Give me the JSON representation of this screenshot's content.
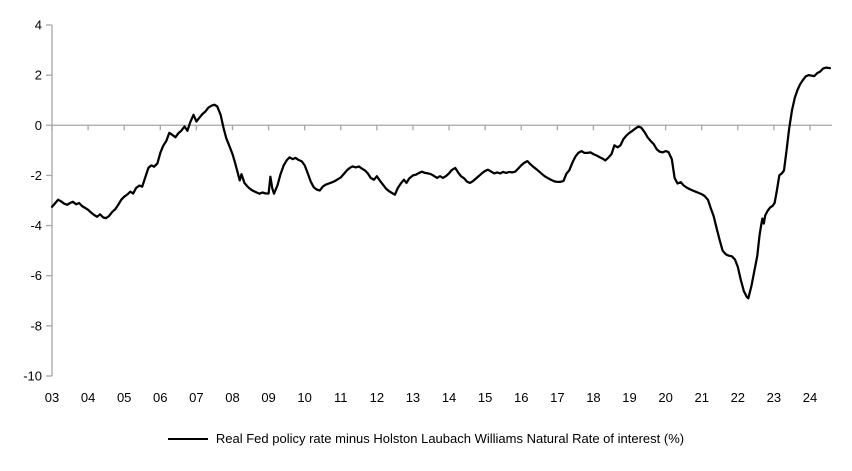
{
  "legend": {
    "series_label": "Real Fed policy rate minus Holston Laubach Williams Natural Rate of interest (%)"
  },
  "chart_data": {
    "type": "line",
    "title": "",
    "xlabel": "",
    "ylabel": "",
    "xlim": [
      2003.0,
      2024.6
    ],
    "ylim": [
      -10,
      4
    ],
    "grid": "zero-line-only",
    "legend_position": "bottom-center",
    "axis_color": "#A6A6A6",
    "line_color": "#000000",
    "y_ticks": [
      4,
      2,
      0,
      -2,
      -4,
      -6,
      -8,
      -10
    ],
    "x_tick_years": [
      2003,
      2004,
      2005,
      2006,
      2007,
      2008,
      2009,
      2010,
      2011,
      2012,
      2013,
      2014,
      2015,
      2016,
      2017,
      2018,
      2019,
      2020,
      2021,
      2022,
      2023,
      2024
    ],
    "x_tick_labels": [
      "03",
      "04",
      "05",
      "06",
      "07",
      "08",
      "09",
      "10",
      "11",
      "12",
      "13",
      "14",
      "15",
      "16",
      "17",
      "18",
      "19",
      "20",
      "21",
      "22",
      "23",
      "24"
    ],
    "series": [
      {
        "name": "Real Fed policy rate minus Holston Laubach Williams Natural Rate of interest (%)",
        "color": "#000000",
        "points": [
          [
            2003.0,
            -3.25
          ],
          [
            2003.08,
            -3.12
          ],
          [
            2003.17,
            -2.97
          ],
          [
            2003.25,
            -3.03
          ],
          [
            2003.33,
            -3.12
          ],
          [
            2003.42,
            -3.17
          ],
          [
            2003.5,
            -3.1
          ],
          [
            2003.58,
            -3.05
          ],
          [
            2003.67,
            -3.15
          ],
          [
            2003.75,
            -3.1
          ],
          [
            2003.83,
            -3.22
          ],
          [
            2003.92,
            -3.3
          ],
          [
            2004.0,
            -3.37
          ],
          [
            2004.08,
            -3.48
          ],
          [
            2004.17,
            -3.58
          ],
          [
            2004.25,
            -3.65
          ],
          [
            2004.33,
            -3.55
          ],
          [
            2004.42,
            -3.68
          ],
          [
            2004.5,
            -3.7
          ],
          [
            2004.58,
            -3.62
          ],
          [
            2004.67,
            -3.45
          ],
          [
            2004.75,
            -3.35
          ],
          [
            2004.83,
            -3.18
          ],
          [
            2004.92,
            -2.97
          ],
          [
            2005.0,
            -2.85
          ],
          [
            2005.08,
            -2.77
          ],
          [
            2005.17,
            -2.65
          ],
          [
            2005.25,
            -2.72
          ],
          [
            2005.33,
            -2.5
          ],
          [
            2005.42,
            -2.4
          ],
          [
            2005.5,
            -2.45
          ],
          [
            2005.58,
            -2.1
          ],
          [
            2005.67,
            -1.7
          ],
          [
            2005.75,
            -1.6
          ],
          [
            2005.83,
            -1.65
          ],
          [
            2005.92,
            -1.52
          ],
          [
            2006.0,
            -1.1
          ],
          [
            2006.08,
            -0.82
          ],
          [
            2006.17,
            -0.62
          ],
          [
            2006.25,
            -0.3
          ],
          [
            2006.33,
            -0.38
          ],
          [
            2006.42,
            -0.48
          ],
          [
            2006.5,
            -0.32
          ],
          [
            2006.58,
            -0.22
          ],
          [
            2006.67,
            -0.05
          ],
          [
            2006.75,
            -0.22
          ],
          [
            2006.83,
            0.12
          ],
          [
            2006.92,
            0.42
          ],
          [
            2007.0,
            0.15
          ],
          [
            2007.08,
            0.3
          ],
          [
            2007.17,
            0.45
          ],
          [
            2007.25,
            0.55
          ],
          [
            2007.33,
            0.7
          ],
          [
            2007.42,
            0.78
          ],
          [
            2007.5,
            0.82
          ],
          [
            2007.58,
            0.75
          ],
          [
            2007.67,
            0.42
          ],
          [
            2007.75,
            -0.1
          ],
          [
            2007.83,
            -0.52
          ],
          [
            2007.92,
            -0.85
          ],
          [
            2008.0,
            -1.15
          ],
          [
            2008.08,
            -1.55
          ],
          [
            2008.15,
            -1.92
          ],
          [
            2008.2,
            -2.2
          ],
          [
            2008.25,
            -1.95
          ],
          [
            2008.33,
            -2.3
          ],
          [
            2008.42,
            -2.45
          ],
          [
            2008.5,
            -2.55
          ],
          [
            2008.58,
            -2.62
          ],
          [
            2008.67,
            -2.68
          ],
          [
            2008.75,
            -2.73
          ],
          [
            2008.83,
            -2.68
          ],
          [
            2008.92,
            -2.72
          ],
          [
            2009.0,
            -2.72
          ],
          [
            2009.05,
            -2.05
          ],
          [
            2009.1,
            -2.5
          ],
          [
            2009.15,
            -2.73
          ],
          [
            2009.25,
            -2.38
          ],
          [
            2009.33,
            -1.95
          ],
          [
            2009.42,
            -1.6
          ],
          [
            2009.5,
            -1.4
          ],
          [
            2009.58,
            -1.28
          ],
          [
            2009.67,
            -1.35
          ],
          [
            2009.75,
            -1.3
          ],
          [
            2009.83,
            -1.38
          ],
          [
            2009.92,
            -1.44
          ],
          [
            2010.0,
            -1.6
          ],
          [
            2010.08,
            -1.9
          ],
          [
            2010.17,
            -2.25
          ],
          [
            2010.25,
            -2.47
          ],
          [
            2010.33,
            -2.56
          ],
          [
            2010.42,
            -2.6
          ],
          [
            2010.5,
            -2.45
          ],
          [
            2010.58,
            -2.37
          ],
          [
            2010.67,
            -2.32
          ],
          [
            2010.75,
            -2.28
          ],
          [
            2010.83,
            -2.23
          ],
          [
            2010.92,
            -2.15
          ],
          [
            2011.0,
            -2.08
          ],
          [
            2011.08,
            -1.95
          ],
          [
            2011.17,
            -1.8
          ],
          [
            2011.25,
            -1.7
          ],
          [
            2011.33,
            -1.64
          ],
          [
            2011.42,
            -1.68
          ],
          [
            2011.5,
            -1.64
          ],
          [
            2011.58,
            -1.72
          ],
          [
            2011.67,
            -1.8
          ],
          [
            2011.75,
            -1.92
          ],
          [
            2011.83,
            -2.1
          ],
          [
            2011.92,
            -2.17
          ],
          [
            2012.0,
            -2.03
          ],
          [
            2012.08,
            -2.2
          ],
          [
            2012.17,
            -2.37
          ],
          [
            2012.25,
            -2.52
          ],
          [
            2012.33,
            -2.62
          ],
          [
            2012.42,
            -2.7
          ],
          [
            2012.5,
            -2.77
          ],
          [
            2012.58,
            -2.5
          ],
          [
            2012.67,
            -2.31
          ],
          [
            2012.75,
            -2.17
          ],
          [
            2012.82,
            -2.3
          ],
          [
            2012.9,
            -2.12
          ],
          [
            2013.0,
            -2.0
          ],
          [
            2013.08,
            -1.97
          ],
          [
            2013.17,
            -1.9
          ],
          [
            2013.25,
            -1.85
          ],
          [
            2013.33,
            -1.9
          ],
          [
            2013.42,
            -1.92
          ],
          [
            2013.5,
            -1.95
          ],
          [
            2013.58,
            -2.02
          ],
          [
            2013.67,
            -2.1
          ],
          [
            2013.75,
            -2.03
          ],
          [
            2013.83,
            -2.1
          ],
          [
            2013.92,
            -2.02
          ],
          [
            2014.0,
            -1.92
          ],
          [
            2014.08,
            -1.78
          ],
          [
            2014.17,
            -1.7
          ],
          [
            2014.25,
            -1.88
          ],
          [
            2014.33,
            -2.03
          ],
          [
            2014.42,
            -2.12
          ],
          [
            2014.5,
            -2.25
          ],
          [
            2014.58,
            -2.3
          ],
          [
            2014.67,
            -2.22
          ],
          [
            2014.75,
            -2.12
          ],
          [
            2014.83,
            -2.02
          ],
          [
            2014.92,
            -1.9
          ],
          [
            2015.0,
            -1.82
          ],
          [
            2015.08,
            -1.77
          ],
          [
            2015.17,
            -1.85
          ],
          [
            2015.25,
            -1.92
          ],
          [
            2015.33,
            -1.88
          ],
          [
            2015.42,
            -1.92
          ],
          [
            2015.5,
            -1.86
          ],
          [
            2015.58,
            -1.9
          ],
          [
            2015.67,
            -1.86
          ],
          [
            2015.75,
            -1.88
          ],
          [
            2015.83,
            -1.85
          ],
          [
            2015.92,
            -1.72
          ],
          [
            2016.0,
            -1.6
          ],
          [
            2016.08,
            -1.5
          ],
          [
            2016.17,
            -1.43
          ],
          [
            2016.25,
            -1.55
          ],
          [
            2016.33,
            -1.65
          ],
          [
            2016.42,
            -1.75
          ],
          [
            2016.5,
            -1.85
          ],
          [
            2016.58,
            -1.95
          ],
          [
            2016.67,
            -2.05
          ],
          [
            2016.75,
            -2.12
          ],
          [
            2016.83,
            -2.18
          ],
          [
            2016.92,
            -2.24
          ],
          [
            2017.0,
            -2.26
          ],
          [
            2017.08,
            -2.26
          ],
          [
            2017.17,
            -2.22
          ],
          [
            2017.25,
            -1.93
          ],
          [
            2017.33,
            -1.8
          ],
          [
            2017.42,
            -1.48
          ],
          [
            2017.5,
            -1.25
          ],
          [
            2017.58,
            -1.1
          ],
          [
            2017.67,
            -1.03
          ],
          [
            2017.75,
            -1.1
          ],
          [
            2017.83,
            -1.1
          ],
          [
            2017.92,
            -1.08
          ],
          [
            2018.0,
            -1.15
          ],
          [
            2018.08,
            -1.2
          ],
          [
            2018.17,
            -1.27
          ],
          [
            2018.25,
            -1.33
          ],
          [
            2018.33,
            -1.4
          ],
          [
            2018.42,
            -1.28
          ],
          [
            2018.5,
            -1.15
          ],
          [
            2018.58,
            -0.8
          ],
          [
            2018.67,
            -0.88
          ],
          [
            2018.75,
            -0.8
          ],
          [
            2018.83,
            -0.55
          ],
          [
            2018.92,
            -0.4
          ],
          [
            2019.0,
            -0.3
          ],
          [
            2019.08,
            -0.22
          ],
          [
            2019.17,
            -0.12
          ],
          [
            2019.25,
            -0.05
          ],
          [
            2019.33,
            -0.1
          ],
          [
            2019.42,
            -0.28
          ],
          [
            2019.5,
            -0.48
          ],
          [
            2019.58,
            -0.62
          ],
          [
            2019.67,
            -0.75
          ],
          [
            2019.75,
            -0.95
          ],
          [
            2019.83,
            -1.05
          ],
          [
            2019.92,
            -1.08
          ],
          [
            2020.0,
            -1.03
          ],
          [
            2020.08,
            -1.07
          ],
          [
            2020.17,
            -1.35
          ],
          [
            2020.25,
            -2.1
          ],
          [
            2020.33,
            -2.32
          ],
          [
            2020.42,
            -2.27
          ],
          [
            2020.5,
            -2.4
          ],
          [
            2020.58,
            -2.48
          ],
          [
            2020.67,
            -2.55
          ],
          [
            2020.75,
            -2.6
          ],
          [
            2020.83,
            -2.65
          ],
          [
            2020.92,
            -2.7
          ],
          [
            2021.0,
            -2.75
          ],
          [
            2021.08,
            -2.82
          ],
          [
            2021.17,
            -2.97
          ],
          [
            2021.25,
            -3.3
          ],
          [
            2021.33,
            -3.62
          ],
          [
            2021.42,
            -4.15
          ],
          [
            2021.5,
            -4.6
          ],
          [
            2021.58,
            -5.0
          ],
          [
            2021.67,
            -5.15
          ],
          [
            2021.75,
            -5.2
          ],
          [
            2021.83,
            -5.22
          ],
          [
            2021.92,
            -5.35
          ],
          [
            2022.0,
            -5.65
          ],
          [
            2022.08,
            -6.15
          ],
          [
            2022.17,
            -6.62
          ],
          [
            2022.25,
            -6.85
          ],
          [
            2022.29,
            -6.9
          ],
          [
            2022.38,
            -6.4
          ],
          [
            2022.46,
            -5.8
          ],
          [
            2022.54,
            -5.2
          ],
          [
            2022.6,
            -4.4
          ],
          [
            2022.65,
            -3.95
          ],
          [
            2022.68,
            -3.72
          ],
          [
            2022.72,
            -3.92
          ],
          [
            2022.76,
            -3.6
          ],
          [
            2022.83,
            -3.4
          ],
          [
            2022.9,
            -3.27
          ],
          [
            2022.96,
            -3.22
          ],
          [
            2023.02,
            -3.1
          ],
          [
            2023.08,
            -2.62
          ],
          [
            2023.15,
            -2.0
          ],
          [
            2023.22,
            -1.92
          ],
          [
            2023.28,
            -1.8
          ],
          [
            2023.35,
            -1.02
          ],
          [
            2023.42,
            -0.15
          ],
          [
            2023.5,
            0.6
          ],
          [
            2023.58,
            1.1
          ],
          [
            2023.65,
            1.4
          ],
          [
            2023.72,
            1.62
          ],
          [
            2023.8,
            1.8
          ],
          [
            2023.88,
            1.95
          ],
          [
            2023.96,
            2.0
          ],
          [
            2024.04,
            1.98
          ],
          [
            2024.12,
            1.96
          ],
          [
            2024.2,
            2.08
          ],
          [
            2024.28,
            2.14
          ],
          [
            2024.36,
            2.26
          ],
          [
            2024.45,
            2.3
          ],
          [
            2024.55,
            2.28
          ]
        ]
      }
    ]
  }
}
